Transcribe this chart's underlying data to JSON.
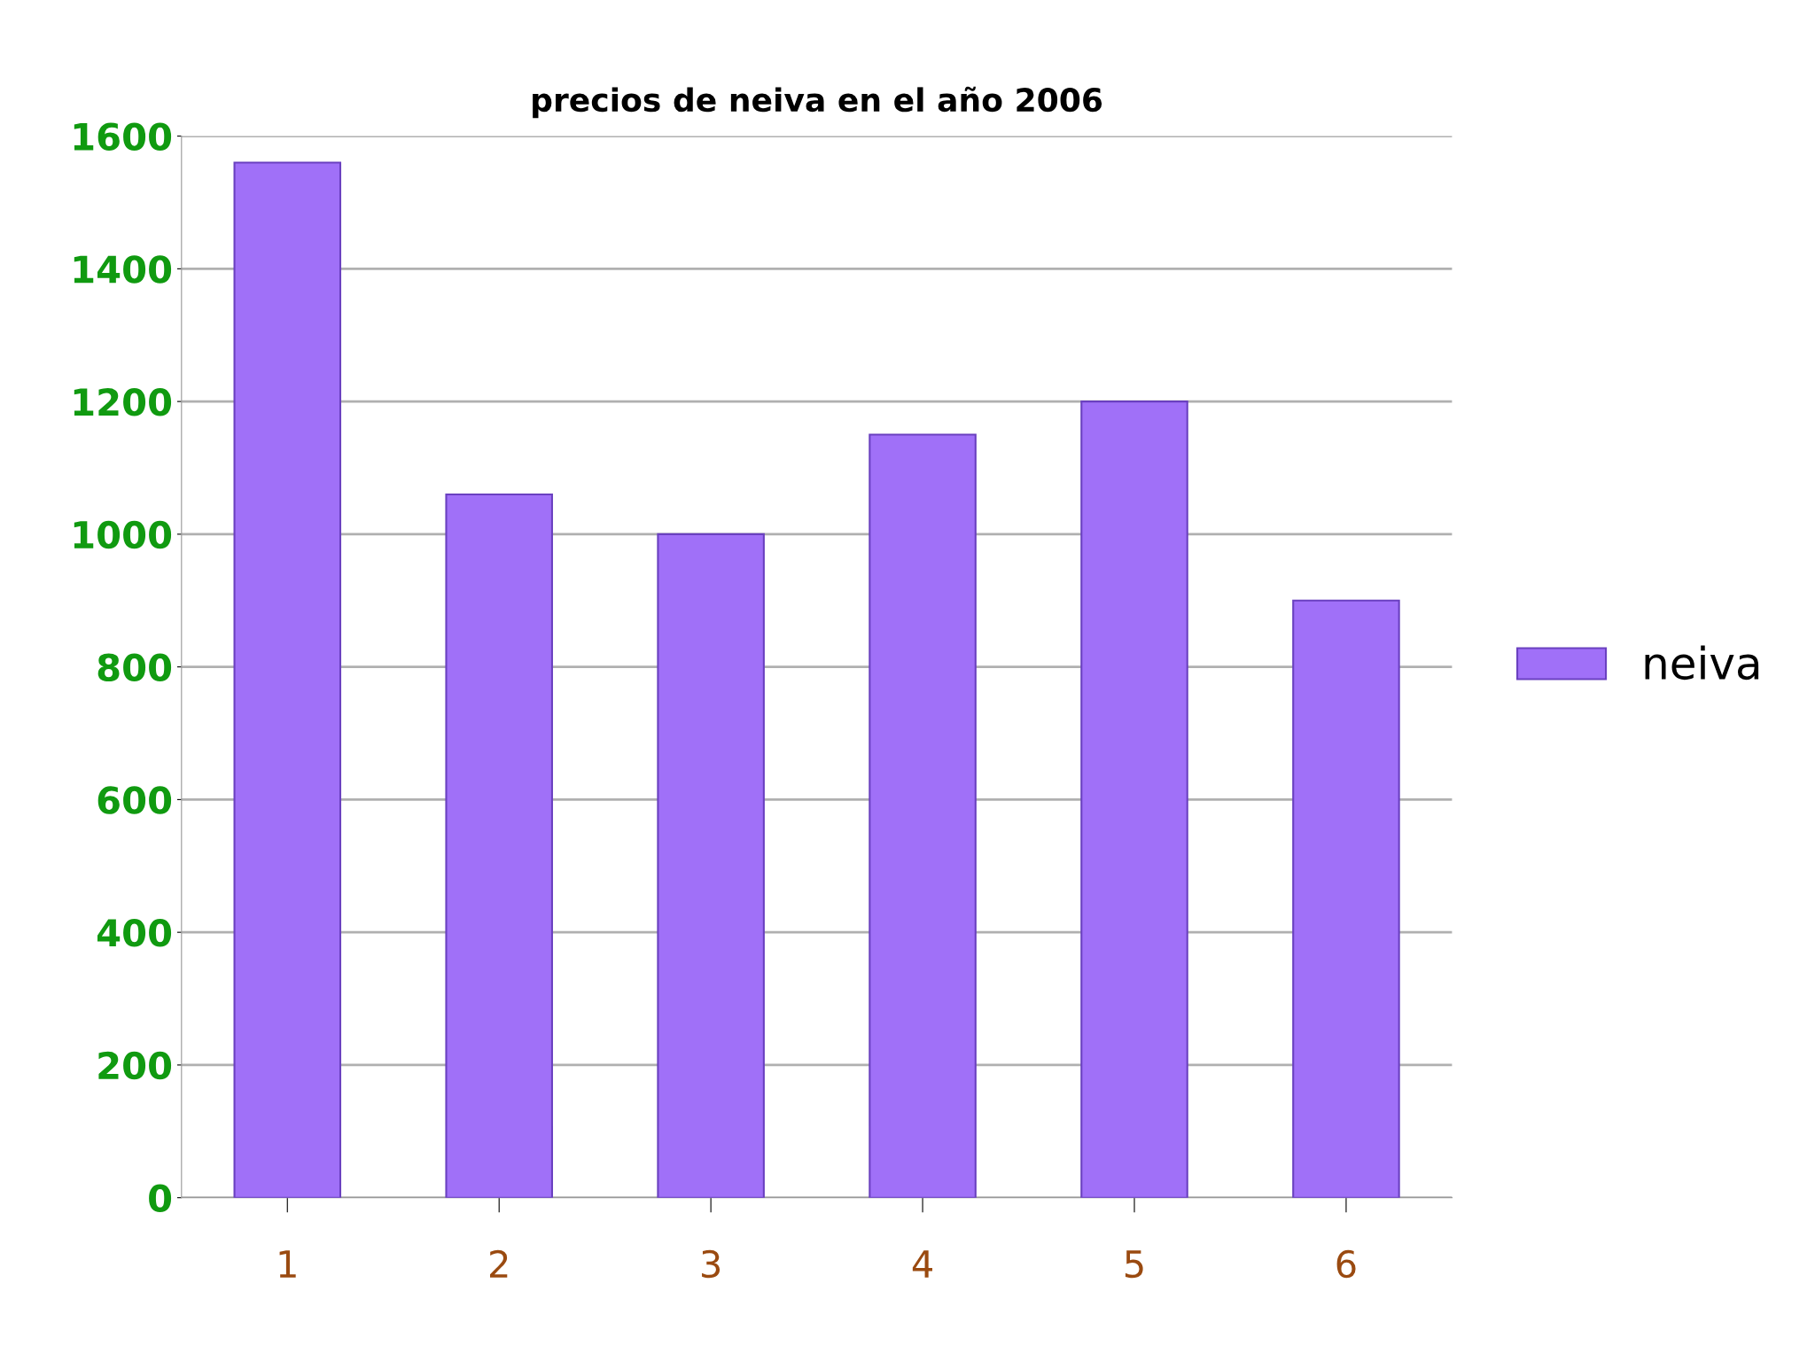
{
  "chart_data": {
    "type": "bar",
    "title": "precios de neiva en el año 2006",
    "categories": [
      "1",
      "2",
      "3",
      "4",
      "5",
      "6"
    ],
    "series": [
      {
        "name": "neiva",
        "color": "#a070f8",
        "values": [
          1560,
          1060,
          1000,
          1150,
          1200,
          900
        ]
      }
    ],
    "ylim": [
      0,
      1600
    ],
    "yticks": [
      0,
      200,
      400,
      600,
      800,
      1000,
      1200,
      1400,
      1600
    ],
    "grid": "y",
    "legend": "right"
  }
}
